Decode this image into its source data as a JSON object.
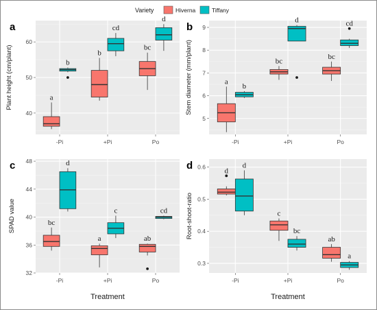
{
  "legend": {
    "title": "Variety",
    "entries": [
      {
        "name": "Hiverna",
        "color": "#F8766D"
      },
      {
        "name": "Tiffany",
        "color": "#00BFC4"
      }
    ]
  },
  "chart_data": [
    {
      "panel": "a",
      "type": "boxplot",
      "ylabel": "Plant height (cm/plant)",
      "xlabel": "",
      "ylim": [
        34,
        66
      ],
      "yticks": [
        40,
        50,
        60
      ],
      "categories": [
        "-Pi",
        "+Pi",
        "Po"
      ],
      "grid": true,
      "series": [
        {
          "name": "Hiverna",
          "boxes": [
            {
              "category": "-Pi",
              "min": 35.5,
              "q1": 36.3,
              "median": 37.0,
              "q3": 39.0,
              "max": 43.0,
              "outliers": [],
              "label": "a"
            },
            {
              "category": "+Pi",
              "min": 43.5,
              "q1": 44.5,
              "median": 48.0,
              "q3": 52.0,
              "max": 55.5,
              "outliers": [],
              "label": "b"
            },
            {
              "category": "Po",
              "min": 46.5,
              "q1": 50.5,
              "median": 52.5,
              "q3": 54.5,
              "max": 57.0,
              "outliers": [],
              "label": "bc"
            }
          ]
        },
        {
          "name": "Tiffany",
          "boxes": [
            {
              "category": "-Pi",
              "min": 51.5,
              "q1": 51.8,
              "median": 52.2,
              "q3": 52.5,
              "max": 52.8,
              "outliers": [
                50.0
              ],
              "label": "b"
            },
            {
              "category": "+Pi",
              "min": 56.0,
              "q1": 57.5,
              "median": 59.5,
              "q3": 61.0,
              "max": 62.5,
              "outliers": [],
              "label": "cd"
            },
            {
              "category": "Po",
              "min": 57.5,
              "q1": 60.5,
              "median": 62.0,
              "q3": 64.0,
              "max": 65.0,
              "outliers": [],
              "label": "d"
            }
          ]
        }
      ]
    },
    {
      "panel": "b",
      "type": "boxplot",
      "ylabel": "Stem diameter (mm/plant)",
      "xlabel": "",
      "ylim": [
        4.3,
        9.3
      ],
      "yticks": [
        5,
        6,
        7,
        8,
        9
      ],
      "categories": [
        "-Pi",
        "+Pi",
        "Po"
      ],
      "grid": true,
      "series": [
        {
          "name": "Hiverna",
          "boxes": [
            {
              "category": "-Pi",
              "min": 4.4,
              "q1": 4.85,
              "median": 5.25,
              "q3": 5.65,
              "max": 6.4,
              "outliers": [],
              "label": "a"
            },
            {
              "category": "+Pi",
              "min": 6.7,
              "q1": 6.95,
              "median": 7.05,
              "q3": 7.15,
              "max": 7.3,
              "outliers": [],
              "label": "bc"
            },
            {
              "category": "Po",
              "min": 6.65,
              "q1": 6.95,
              "median": 7.1,
              "q3": 7.25,
              "max": 7.5,
              "outliers": [],
              "label": "bc"
            }
          ]
        },
        {
          "name": "Tiffany",
          "boxes": [
            {
              "category": "-Pi",
              "min": 5.9,
              "q1": 5.95,
              "median": 6.05,
              "q3": 6.15,
              "max": 6.2,
              "outliers": [],
              "label": "b"
            },
            {
              "category": "+Pi",
              "min": 8.4,
              "q1": 8.4,
              "median": 8.95,
              "q3": 9.05,
              "max": 9.1,
              "outliers": [
                6.8
              ],
              "label": "d"
            },
            {
              "category": "Po",
              "min": 8.1,
              "q1": 8.2,
              "median": 8.3,
              "q3": 8.45,
              "max": 8.5,
              "outliers": [
                8.95
              ],
              "label": "cd"
            }
          ]
        }
      ]
    },
    {
      "panel": "c",
      "type": "boxplot",
      "ylabel": "SPAD value",
      "xlabel": "Treatment",
      "ylim": [
        32,
        48.3
      ],
      "yticks": [
        32,
        36,
        40,
        44,
        48
      ],
      "categories": [
        "-Pi",
        "+Pi",
        "Po"
      ],
      "grid": true,
      "series": [
        {
          "name": "Hiverna",
          "boxes": [
            {
              "category": "-Pi",
              "min": 35.2,
              "q1": 35.8,
              "median": 36.5,
              "q3": 37.4,
              "max": 38.5,
              "outliers": [],
              "label": "bc"
            },
            {
              "category": "+Pi",
              "min": 32.8,
              "q1": 34.6,
              "median": 35.5,
              "q3": 35.9,
              "max": 36.2,
              "outliers": [],
              "label": "a"
            },
            {
              "category": "Po",
              "min": 34.5,
              "q1": 35.0,
              "median": 35.8,
              "q3": 36.1,
              "max": 36.2,
              "outliers": [
                32.6
              ],
              "label": "ab"
            }
          ]
        },
        {
          "name": "Tiffany",
          "boxes": [
            {
              "category": "-Pi",
              "min": 40.8,
              "q1": 41.2,
              "median": 43.9,
              "q3": 46.5,
              "max": 47.0,
              "outliers": [],
              "label": "d"
            },
            {
              "category": "+Pi",
              "min": 37.0,
              "q1": 37.6,
              "median": 38.4,
              "q3": 39.2,
              "max": 40.2,
              "outliers": [],
              "label": "c"
            },
            {
              "category": "Po",
              "min": 39.7,
              "q1": 39.8,
              "median": 40.0,
              "q3": 40.1,
              "max": 40.2,
              "outliers": [],
              "label": "cd"
            }
          ]
        }
      ]
    },
    {
      "panel": "d",
      "type": "boxplot",
      "ylabel": "Root-shoot-ratio",
      "xlabel": "Treatment",
      "ylim": [
        0.27,
        0.625
      ],
      "yticks": [
        0.3,
        0.4,
        0.5,
        0.6
      ],
      "yticklabels": [
        "0.3",
        "0.4",
        "0.5",
        "0.6"
      ],
      "categories": [
        "-Pi",
        "+Pi",
        "Po"
      ],
      "grid": true,
      "series": [
        {
          "name": "Hiverna",
          "boxes": [
            {
              "category": "-Pi",
              "min": 0.512,
              "q1": 0.516,
              "median": 0.522,
              "q3": 0.532,
              "max": 0.54,
              "outliers": [
                0.573
              ],
              "label": "d"
            },
            {
              "category": "+Pi",
              "min": 0.37,
              "q1": 0.403,
              "median": 0.42,
              "q3": 0.432,
              "max": 0.44,
              "outliers": [],
              "label": "c"
            },
            {
              "category": "Po",
              "min": 0.305,
              "q1": 0.316,
              "median": 0.327,
              "q3": 0.35,
              "max": 0.36,
              "outliers": [],
              "label": "ab"
            }
          ]
        },
        {
          "name": "Tiffany",
          "boxes": [
            {
              "category": "-Pi",
              "min": 0.45,
              "q1": 0.463,
              "median": 0.51,
              "q3": 0.563,
              "max": 0.59,
              "outliers": [],
              "label": "d"
            },
            {
              "category": "+Pi",
              "min": 0.34,
              "q1": 0.35,
              "median": 0.36,
              "q3": 0.375,
              "max": 0.385,
              "outliers": [],
              "label": "bc"
            },
            {
              "category": "Po",
              "min": 0.28,
              "q1": 0.287,
              "median": 0.295,
              "q3": 0.303,
              "max": 0.307,
              "outliers": [],
              "label": "a"
            }
          ]
        }
      ]
    }
  ]
}
